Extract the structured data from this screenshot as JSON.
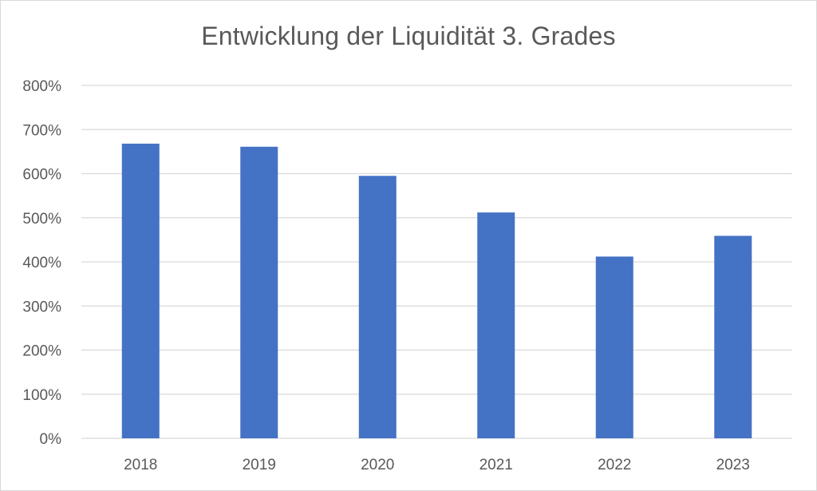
{
  "chart_data": {
    "type": "bar",
    "title": "Entwicklung der Liquidität 3. Grades",
    "xlabel": "",
    "ylabel": "",
    "categories": [
      "2018",
      "2019",
      "2020",
      "2021",
      "2022",
      "2023"
    ],
    "values": [
      668,
      661,
      595,
      512,
      412,
      459
    ],
    "unit": "%",
    "ylim": [
      0,
      800
    ],
    "yticks": [
      0,
      100,
      200,
      300,
      400,
      500,
      600,
      700,
      800
    ],
    "ytick_labels": [
      "0%",
      "100%",
      "200%",
      "300%",
      "400%",
      "500%",
      "600%",
      "700%",
      "800%"
    ],
    "grid": true,
    "legend": "none",
    "colors": {
      "bar": "#4472C4",
      "grid": "#d9d9d9",
      "text": "#595959"
    }
  }
}
